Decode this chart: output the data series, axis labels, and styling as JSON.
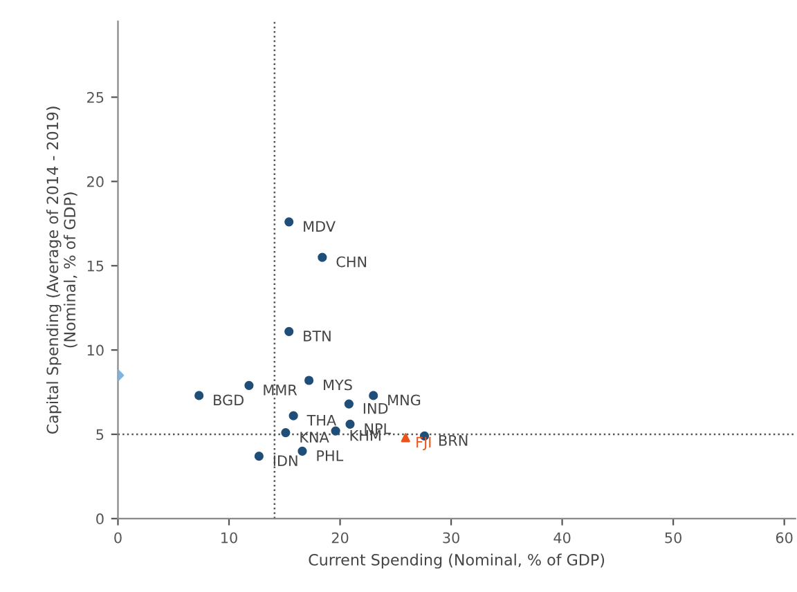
{
  "chart_data": {
    "type": "scatter",
    "xlabel": "Current Spending (Nominal, % of GDP)",
    "ylabel": "Capital Spending (Average of 2014 - 2019)\n(Nominal, % of GDP)",
    "xlim": [
      0,
      61
    ],
    "ylim": [
      0,
      29.5
    ],
    "xticks": [
      0,
      10,
      20,
      30,
      40,
      50,
      60
    ],
    "yticks": [
      0,
      5,
      10,
      15,
      20,
      25
    ],
    "grid": false,
    "legend": false,
    "series": [
      {
        "color": "#1f4e79",
        "marker": "circle",
        "x": [
          15.4,
          18.4,
          15.4,
          7.3,
          11.8,
          17.2,
          23.0,
          20.8,
          15.8,
          20.9,
          15.1,
          19.6,
          27.6,
          16.6,
          12.7
        ],
        "values": [
          17.6,
          15.5,
          11.1,
          7.3,
          7.9,
          8.2,
          7.3,
          6.8,
          6.1,
          5.6,
          5.1,
          5.2,
          4.9,
          4.0,
          3.7
        ]
      },
      {
        "name": "FJI",
        "color": "#e8541c",
        "marker": "triangle",
        "x": [
          25.9
        ],
        "values": [
          4.8
        ]
      },
      {
        "color": "#7fb3e0",
        "marker": "diamond",
        "x": [
          0
        ],
        "values": [
          8.5
        ]
      }
    ],
    "ref_lines": [
      {
        "axis": "x",
        "value": 14.1,
        "line_style": "dotted",
        "color": "#555555"
      },
      {
        "axis": "y",
        "value": 5.0,
        "line_style": "dotted",
        "color": "#555555"
      }
    ],
    "annotations": [
      {
        "text": "MDV",
        "x": 15.4,
        "y": 17.6
      },
      {
        "text": "CHN",
        "x": 18.4,
        "y": 15.5
      },
      {
        "text": "BTN",
        "x": 15.4,
        "y": 11.1
      },
      {
        "text": "BGD",
        "x": 7.3,
        "y": 7.3
      },
      {
        "text": "MMR",
        "x": 11.8,
        "y": 7.9
      },
      {
        "text": "MYS",
        "x": 17.2,
        "y": 8.2
      },
      {
        "text": "MNG",
        "x": 23.0,
        "y": 7.3
      },
      {
        "text": "IND",
        "x": 20.8,
        "y": 6.8
      },
      {
        "text": "THA",
        "x": 15.8,
        "y": 6.1
      },
      {
        "text": "NPL",
        "x": 20.9,
        "y": 5.6
      },
      {
        "text": "KNA",
        "x": 15.1,
        "y": 5.1
      },
      {
        "text": "KHM",
        "x": 19.6,
        "y": 5.2
      },
      {
        "text": "BRN",
        "x": 27.6,
        "y": 4.9
      },
      {
        "text": "PHL",
        "x": 16.6,
        "y": 4.0
      },
      {
        "text": "IDN",
        "x": 12.7,
        "y": 3.7
      }
    ]
  }
}
